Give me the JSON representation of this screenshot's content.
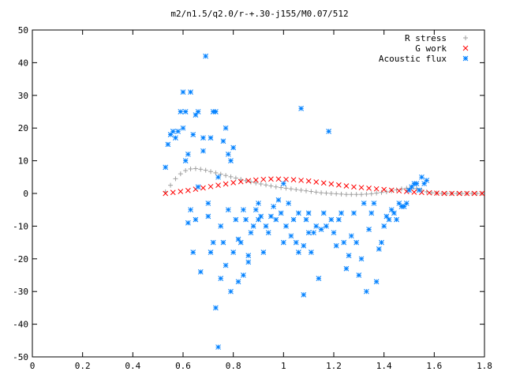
{
  "chart_data": {
    "type": "scatter",
    "title": "m2/n1.5/q2.0/r-+.30-j155/M0.07/512",
    "xlabel": "",
    "ylabel": "",
    "xlim": [
      0,
      1.8
    ],
    "ylim": [
      -50,
      50
    ],
    "xticks": [
      0,
      0.2,
      0.4,
      0.6,
      0.8,
      1,
      1.2,
      1.4,
      1.6,
      1.8
    ],
    "xtick_labels": [
      "0",
      "0.2",
      "0.4",
      "0.6",
      "0.8",
      "1",
      "1.2",
      "1.4",
      "1.6",
      "1.8"
    ],
    "yticks": [
      -50,
      -40,
      -30,
      -20,
      -10,
      0,
      10,
      20,
      30,
      40,
      50
    ],
    "ytick_labels": [
      "-50",
      "-40",
      "-30",
      "-20",
      "-10",
      "0",
      "10",
      "20",
      "30",
      "40",
      "50"
    ],
    "grid": false,
    "legend_position": "top-right",
    "series": [
      {
        "name": "R stress",
        "marker": "plus",
        "color": "#a0a0a0",
        "x": [
          0.53,
          0.55,
          0.57,
          0.59,
          0.61,
          0.63,
          0.65,
          0.67,
          0.69,
          0.71,
          0.73,
          0.75,
          0.77,
          0.79,
          0.81,
          0.83,
          0.85,
          0.87,
          0.89,
          0.91,
          0.93,
          0.95,
          0.97,
          0.99,
          1.01,
          1.03,
          1.05,
          1.07,
          1.09,
          1.11,
          1.13,
          1.15,
          1.17,
          1.19,
          1.21,
          1.23,
          1.25,
          1.27,
          1.29,
          1.31,
          1.33,
          1.35,
          1.37,
          1.39,
          1.41,
          1.43,
          1.45,
          1.47,
          1.49,
          1.51,
          1.53,
          1.55,
          1.57,
          1.59,
          1.61,
          1.63,
          1.65,
          1.67,
          1.69,
          1.71,
          1.73,
          1.75,
          1.77,
          1.79
        ],
        "y": [
          0.5,
          2.5,
          4.5,
          6.0,
          7.0,
          7.5,
          7.6,
          7.4,
          7.1,
          6.7,
          6.3,
          5.9,
          5.5,
          5.1,
          4.7,
          4.3,
          3.9,
          3.5,
          3.2,
          2.9,
          2.6,
          2.3,
          2.0,
          1.8,
          1.6,
          1.4,
          1.2,
          1.0,
          0.8,
          0.6,
          0.4,
          0.2,
          0.1,
          0.0,
          -0.1,
          -0.2,
          -0.3,
          -0.3,
          -0.3,
          -0.3,
          -0.2,
          -0.1,
          0.1,
          0.3,
          0.5,
          0.8,
          1.1,
          1.4,
          1.6,
          1.7,
          1.5,
          1.0,
          0.5,
          0.2,
          0.1,
          0.0,
          0.0,
          0.0,
          0.0,
          0.0,
          0.0,
          0.0,
          0.0,
          0.0
        ]
      },
      {
        "name": "G work",
        "marker": "cross",
        "color": "#ff0000",
        "x": [
          0.53,
          0.56,
          0.59,
          0.62,
          0.65,
          0.68,
          0.71,
          0.74,
          0.77,
          0.8,
          0.83,
          0.86,
          0.89,
          0.92,
          0.95,
          0.98,
          1.01,
          1.04,
          1.07,
          1.1,
          1.13,
          1.16,
          1.19,
          1.22,
          1.25,
          1.28,
          1.31,
          1.34,
          1.37,
          1.4,
          1.43,
          1.46,
          1.49,
          1.52,
          1.55,
          1.58,
          1.61,
          1.64,
          1.67,
          1.7,
          1.73,
          1.76,
          1.79
        ],
        "y": [
          0.0,
          0.3,
          0.6,
          0.9,
          1.3,
          1.7,
          2.1,
          2.5,
          2.9,
          3.3,
          3.6,
          3.9,
          4.1,
          4.3,
          4.4,
          4.4,
          4.3,
          4.2,
          4.0,
          3.8,
          3.5,
          3.2,
          2.9,
          2.6,
          2.3,
          2.0,
          1.8,
          1.6,
          1.4,
          1.2,
          1.0,
          0.8,
          0.6,
          0.4,
          0.3,
          0.2,
          0.1,
          0.0,
          0.0,
          0.0,
          0.0,
          0.0,
          0.0
        ]
      },
      {
        "name": "Acoustic flux",
        "marker": "star",
        "color": "#0080ff",
        "x": [
          0.53,
          0.54,
          0.55,
          0.56,
          0.57,
          0.58,
          0.59,
          0.6,
          0.6,
          0.61,
          0.61,
          0.62,
          0.62,
          0.63,
          0.63,
          0.64,
          0.64,
          0.65,
          0.65,
          0.66,
          0.66,
          0.67,
          0.68,
          0.68,
          0.69,
          0.7,
          0.7,
          0.71,
          0.71,
          0.72,
          0.72,
          0.73,
          0.73,
          0.74,
          0.74,
          0.75,
          0.75,
          0.76,
          0.76,
          0.77,
          0.77,
          0.78,
          0.78,
          0.79,
          0.79,
          0.8,
          0.8,
          0.81,
          0.82,
          0.82,
          0.83,
          0.84,
          0.84,
          0.85,
          0.86,
          0.86,
          0.87,
          0.88,
          0.89,
          0.9,
          0.9,
          0.91,
          0.92,
          0.93,
          0.94,
          0.95,
          0.96,
          0.97,
          0.98,
          0.99,
          1.0,
          1.0,
          1.01,
          1.02,
          1.03,
          1.04,
          1.05,
          1.06,
          1.06,
          1.07,
          1.08,
          1.08,
          1.09,
          1.1,
          1.1,
          1.11,
          1.12,
          1.13,
          1.14,
          1.15,
          1.16,
          1.17,
          1.18,
          1.19,
          1.2,
          1.21,
          1.22,
          1.23,
          1.24,
          1.25,
          1.26,
          1.27,
          1.28,
          1.29,
          1.3,
          1.31,
          1.32,
          1.33,
          1.34,
          1.35,
          1.36,
          1.37,
          1.38,
          1.39,
          1.4,
          1.41,
          1.42,
          1.43,
          1.44,
          1.45,
          1.46,
          1.47,
          1.48,
          1.49,
          1.5,
          1.51,
          1.52,
          1.53,
          1.54,
          1.55,
          1.56,
          1.57
        ],
        "y": [
          8,
          15,
          18,
          19,
          17,
          19,
          25,
          31,
          20,
          25,
          10,
          12,
          -9,
          31,
          -5,
          18,
          -18,
          24,
          -8,
          25,
          2,
          -24,
          17,
          13,
          42,
          -3,
          -7,
          17,
          -18,
          25,
          -15,
          25,
          -35,
          -47,
          5,
          -26,
          -10,
          16,
          -15,
          20,
          -22,
          12,
          -5,
          -30,
          10,
          -18,
          14,
          -8,
          -27,
          -14,
          -15,
          -25,
          -5,
          -8,
          -19,
          -21,
          -12,
          -10,
          -5,
          -8,
          -3,
          -7,
          -18,
          -10,
          -12,
          -7,
          -4,
          -8,
          -2,
          -6,
          -15,
          3,
          -10,
          -3,
          -13,
          -8,
          -15,
          -6,
          -18,
          26,
          -16,
          -31,
          -8,
          -6,
          -12,
          -18,
          -12,
          -10,
          -26,
          -11,
          -6,
          -10,
          19,
          -8,
          -12,
          -16,
          -8,
          -6,
          -15,
          -23,
          -19,
          -13,
          -6,
          -15,
          -25,
          -20,
          -3,
          -30,
          -11,
          -6,
          -3,
          -27,
          -17,
          -15,
          -10,
          -7,
          -8,
          -5,
          -6,
          -8,
          -3,
          -4,
          -4,
          -3,
          1,
          2,
          3,
          3,
          1,
          5,
          3,
          4
        ]
      }
    ],
    "baseline_series_note": ""
  }
}
